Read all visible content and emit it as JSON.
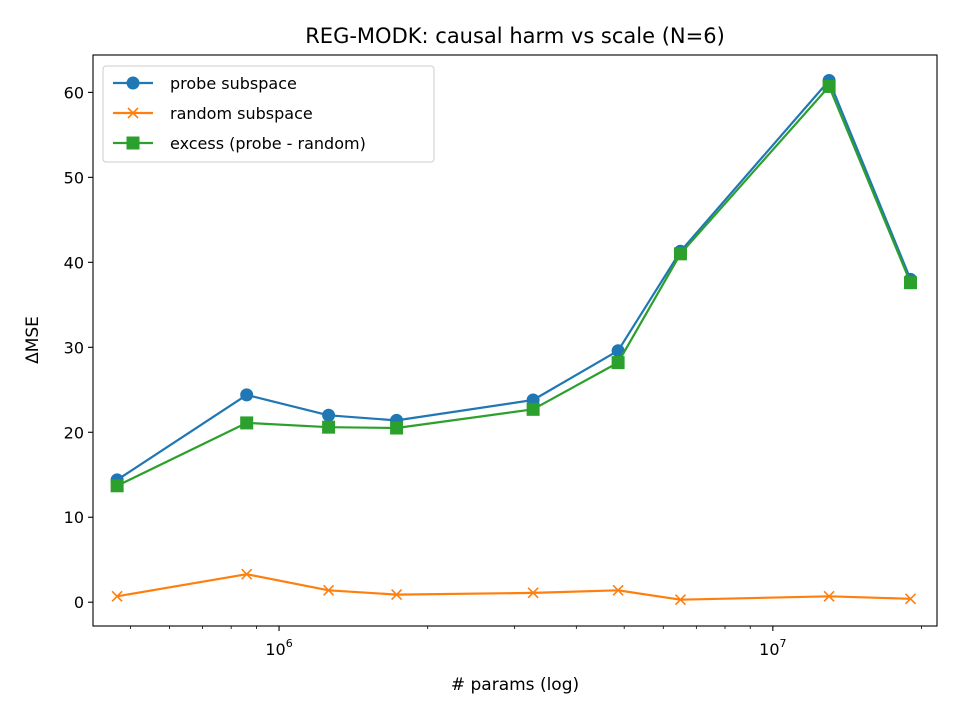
{
  "chart_data": {
    "type": "line",
    "title": "REG-MODK: causal harm vs scale (N=6)",
    "xlabel": "# params (log)",
    "ylabel": "ΔMSE",
    "x_scale": "log",
    "xlim": [
      420000,
      21500000
    ],
    "ylim": [
      -2.8,
      64.4
    ],
    "x_ticks": [
      {
        "value": 1000000,
        "base": "10",
        "exp": "6"
      },
      {
        "value": 10000000,
        "base": "10",
        "exp": "7"
      }
    ],
    "y_ticks": [
      0,
      10,
      20,
      30,
      40,
      50,
      60
    ],
    "legend_position": "upper left",
    "grid": false,
    "x": [
      470000,
      860000,
      1260000,
      1730000,
      3270000,
      4860000,
      6500000,
      13000000,
      19000000
    ],
    "series": [
      {
        "name": "probe subspace",
        "color": "#1f77b4",
        "marker": "circle",
        "values": [
          14.4,
          24.4,
          22.0,
          21.4,
          23.8,
          29.6,
          41.3,
          61.4,
          38.0
        ]
      },
      {
        "name": "random subspace",
        "color": "#ff7f0e",
        "marker": "x",
        "values": [
          0.7,
          3.3,
          1.4,
          0.9,
          1.1,
          1.4,
          0.3,
          0.7,
          0.4
        ]
      },
      {
        "name": "excess (probe - random)",
        "color": "#2ca02c",
        "marker": "square",
        "values": [
          13.7,
          21.1,
          20.6,
          20.5,
          22.7,
          28.2,
          41.0,
          60.7,
          37.6
        ]
      }
    ]
  }
}
